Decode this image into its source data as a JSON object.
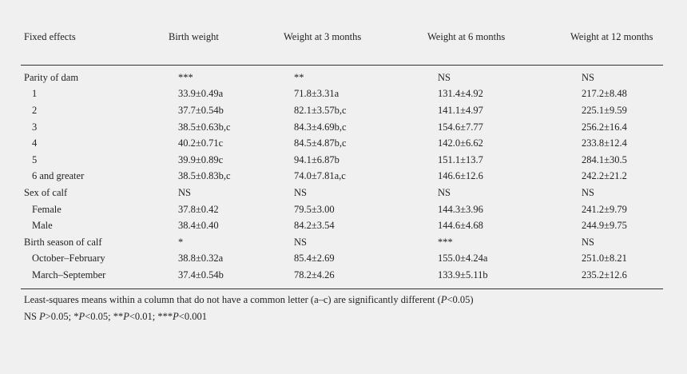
{
  "table": {
    "headers": [
      "Fixed effects",
      "Birth weight",
      "Weight at 3 months",
      "Weight at 6 months",
      "Weight at 12 months"
    ],
    "rows": [
      {
        "label": "Parity of dam",
        "indent": false,
        "cells": [
          "***",
          "**",
          "NS",
          "NS"
        ]
      },
      {
        "label": "1",
        "indent": true,
        "cells": [
          "33.9±0.49a",
          "71.8±3.31a",
          "131.4±4.92",
          "217.2±8.48"
        ]
      },
      {
        "label": "2",
        "indent": true,
        "cells": [
          "37.7±0.54b",
          "82.1±3.57b,c",
          "141.1±4.97",
          "225.1±9.59"
        ]
      },
      {
        "label": "3",
        "indent": true,
        "cells": [
          "38.5±0.63b,c",
          "84.3±4.69b,c",
          "154.6±7.77",
          "256.2±16.4"
        ]
      },
      {
        "label": "4",
        "indent": true,
        "cells": [
          "40.2±0.71c",
          "84.5±4.87b,c",
          "142.0±6.62",
          "233.8±12.4"
        ]
      },
      {
        "label": "5",
        "indent": true,
        "cells": [
          "39.9±0.89c",
          "94.1±6.87b",
          "151.1±13.7",
          "284.1±30.5"
        ]
      },
      {
        "label": "6 and greater",
        "indent": true,
        "cells": [
          "38.5±0.83b,c",
          "74.0±7.81a,c",
          "146.6±12.6",
          "242.2±21.2"
        ]
      },
      {
        "label": "Sex of calf",
        "indent": false,
        "cells": [
          "NS",
          "NS",
          "NS",
          "NS"
        ]
      },
      {
        "label": "Female",
        "indent": true,
        "cells": [
          "37.8±0.42",
          "79.5±3.00",
          "144.3±3.96",
          "241.2±9.79"
        ]
      },
      {
        "label": "Male",
        "indent": true,
        "cells": [
          "38.4±0.40",
          "84.2±3.54",
          "144.6±4.68",
          "244.9±9.75"
        ]
      },
      {
        "label": "Birth season of calf",
        "indent": false,
        "cells": [
          "*",
          "NS",
          "***",
          "NS"
        ]
      },
      {
        "label": "October–February",
        "indent": true,
        "cells": [
          "38.8±0.32a",
          "85.4±2.69",
          "155.0±4.24a",
          "251.0±8.21"
        ]
      },
      {
        "label": "March–September",
        "indent": true,
        "cells": [
          "37.4±0.54b",
          "78.2±4.26",
          "133.9±5.11b",
          "235.2±12.6"
        ]
      }
    ]
  },
  "footnotes": {
    "line1_pre": "Least-squares means within a column that do not have a common letter (a–c) are significantly different (",
    "line1_p": "P",
    "line1_post": "<0.05)",
    "line2": [
      {
        "t": "NS ",
        "i": false
      },
      {
        "t": "P",
        "i": true
      },
      {
        "t": ">0.05; *",
        "i": false
      },
      {
        "t": "P",
        "i": true
      },
      {
        "t": "<0.05; **",
        "i": false
      },
      {
        "t": "P",
        "i": true
      },
      {
        "t": "<0.01; ***",
        "i": false
      },
      {
        "t": "P",
        "i": true
      },
      {
        "t": "<0.001",
        "i": false
      }
    ]
  }
}
